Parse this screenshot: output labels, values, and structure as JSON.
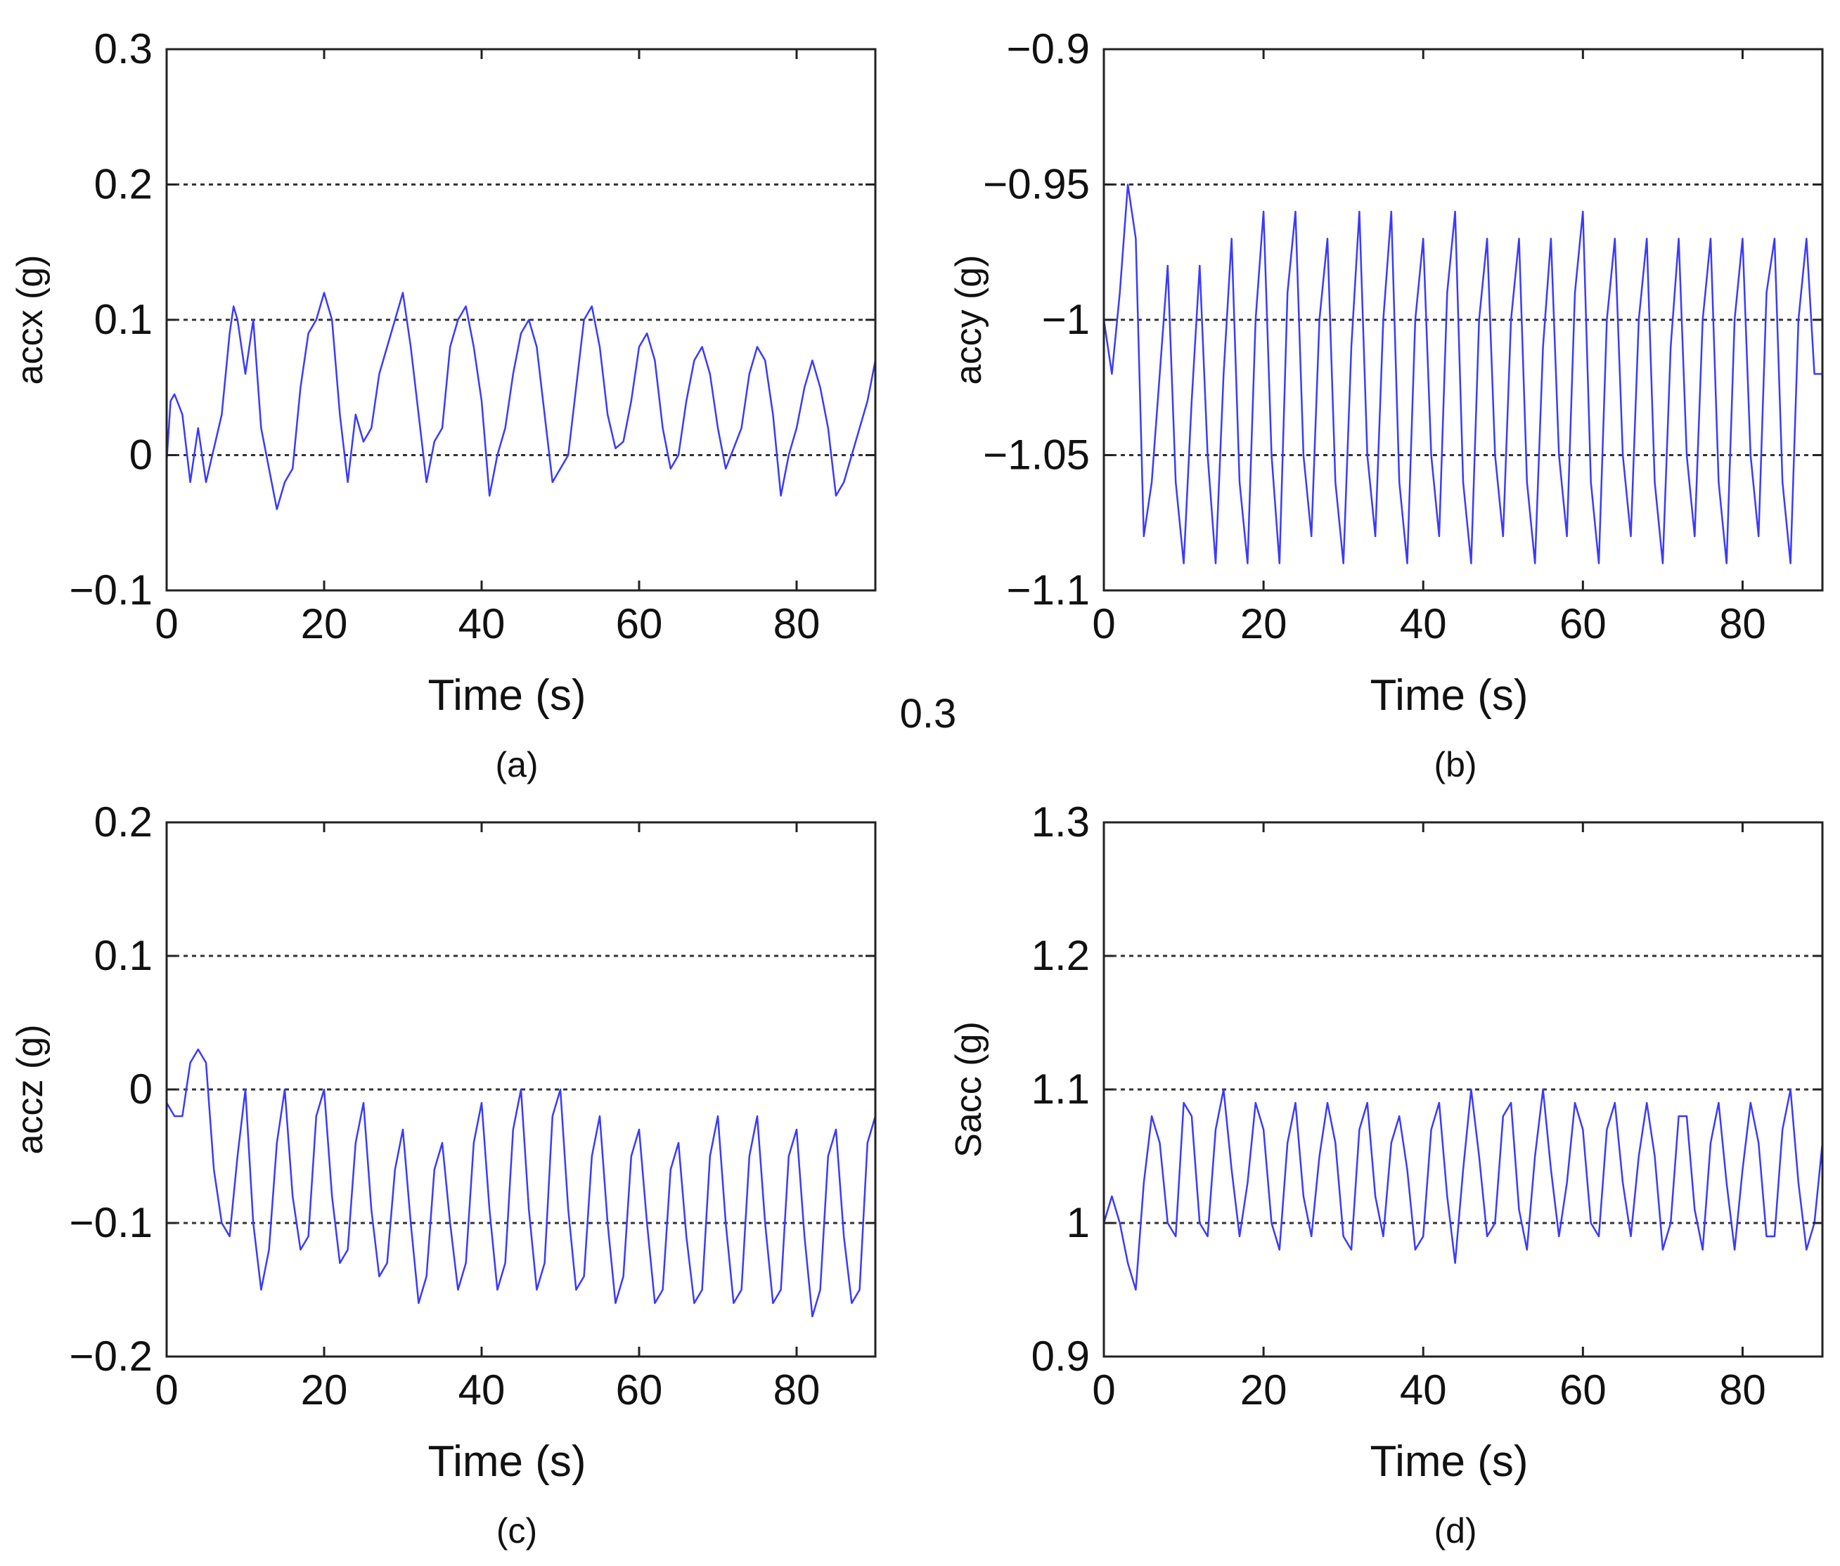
{
  "figure": {
    "stray_text": "0.3",
    "colors": {
      "series": "#3a3aff",
      "grid": "#333333",
      "axes": "#222222",
      "background": "#ffffff"
    }
  },
  "chart_data": [
    {
      "type": "line",
      "panel": "(a)",
      "xlabel": "Time (s)",
      "ylabel": "accx (g)",
      "xlim": [
        0,
        90
      ],
      "ylim": [
        -0.1,
        0.3
      ],
      "xticks": [
        0,
        20,
        40,
        60,
        80
      ],
      "xtick_labels": [
        "0",
        "20",
        "40",
        "60",
        "80"
      ],
      "yticks": [
        -0.1,
        0,
        0.1,
        0.2,
        0.3
      ],
      "ytick_labels": [
        "−0.1",
        "0",
        "0.1",
        "0.2",
        "0.3"
      ],
      "grid_y": [
        0,
        0.1,
        0.2
      ],
      "series": [
        {
          "name": "accx",
          "x": [
            0,
            0.5,
            1,
            2,
            3,
            4,
            5,
            6,
            7,
            8,
            8.5,
            9,
            10,
            11,
            12,
            13,
            14,
            15,
            16,
            17,
            18,
            19,
            20,
            21,
            22,
            23,
            24,
            25,
            26,
            27,
            28,
            29,
            30,
            31,
            32,
            33,
            34,
            35,
            36,
            37,
            38,
            39,
            40,
            41,
            42,
            43,
            44,
            45,
            46,
            47,
            48,
            49,
            50,
            51,
            52,
            53,
            54,
            55,
            56,
            57,
            58,
            59,
            60,
            61,
            62,
            63,
            64,
            65,
            66,
            67,
            68,
            69,
            70,
            71,
            72,
            73,
            74,
            75,
            76,
            77,
            78,
            79,
            80,
            81,
            82,
            83,
            84,
            85,
            86,
            87,
            88,
            89,
            90
          ],
          "y": [
            -0.005,
            0.04,
            0.045,
            0.03,
            -0.02,
            0.02,
            -0.02,
            0.005,
            0.03,
            0.09,
            0.11,
            0.1,
            0.06,
            0.1,
            0.02,
            -0.01,
            -0.04,
            -0.02,
            -0.01,
            0.05,
            0.09,
            0.1,
            0.12,
            0.1,
            0.03,
            -0.02,
            0.03,
            0.01,
            0.02,
            0.06,
            0.08,
            0.1,
            0.12,
            0.08,
            0.03,
            -0.02,
            0.01,
            0.02,
            0.08,
            0.1,
            0.11,
            0.08,
            0.04,
            -0.03,
            0.0,
            0.02,
            0.06,
            0.09,
            0.1,
            0.08,
            0.03,
            -0.02,
            -0.01,
            0.0,
            0.05,
            0.1,
            0.11,
            0.08,
            0.03,
            0.005,
            0.01,
            0.04,
            0.08,
            0.09,
            0.07,
            0.02,
            -0.01,
            0.0,
            0.04,
            0.07,
            0.08,
            0.06,
            0.02,
            -0.01,
            0.005,
            0.02,
            0.06,
            0.08,
            0.07,
            0.03,
            -0.03,
            0.0,
            0.02,
            0.05,
            0.07,
            0.05,
            0.02,
            -0.03,
            -0.02,
            0.0,
            0.02,
            0.04,
            0.07
          ]
        }
      ]
    },
    {
      "type": "line",
      "panel": "(b)",
      "xlabel": "Time (s)",
      "ylabel": "accy (g)",
      "xlim": [
        0,
        90
      ],
      "ylim": [
        -1.1,
        -0.9
      ],
      "xticks": [
        0,
        20,
        40,
        60,
        80
      ],
      "xtick_labels": [
        "0",
        "20",
        "40",
        "60",
        "80"
      ],
      "yticks": [
        -1.1,
        -1.05,
        -1.0,
        -0.95,
        -0.9
      ],
      "ytick_labels": [
        "−1.1",
        "−1.05",
        "−1",
        "−0.95",
        "−0.9"
      ],
      "grid_y": [
        -1.05,
        -1.0,
        -0.95
      ],
      "series": [
        {
          "name": "accy",
          "x": [
            0,
            1,
            2,
            3,
            4,
            5,
            6,
            7,
            8,
            9,
            10,
            11,
            12,
            13,
            14,
            15,
            16,
            17,
            18,
            19,
            20,
            21,
            22,
            23,
            24,
            25,
            26,
            27,
            28,
            29,
            30,
            31,
            32,
            33,
            34,
            35,
            36,
            37,
            38,
            39,
            40,
            41,
            42,
            43,
            44,
            45,
            46,
            47,
            48,
            49,
            50,
            51,
            52,
            53,
            54,
            55,
            56,
            57,
            58,
            59,
            60,
            61,
            62,
            63,
            64,
            65,
            66,
            67,
            68,
            69,
            70,
            71,
            72,
            73,
            74,
            75,
            76,
            77,
            78,
            79,
            80,
            81,
            82,
            83,
            84,
            85,
            86,
            87,
            88,
            89,
            90
          ],
          "y": [
            -1.0,
            -1.02,
            -0.99,
            -0.95,
            -0.97,
            -1.08,
            -1.06,
            -1.02,
            -0.98,
            -1.06,
            -1.09,
            -1.03,
            -0.98,
            -1.05,
            -1.09,
            -1.02,
            -0.97,
            -1.06,
            -1.09,
            -1.0,
            -0.96,
            -1.05,
            -1.09,
            -0.99,
            -0.96,
            -1.05,
            -1.08,
            -1.0,
            -0.97,
            -1.06,
            -1.09,
            -1.01,
            -0.96,
            -1.05,
            -1.08,
            -1.0,
            -0.96,
            -1.06,
            -1.09,
            -1.0,
            -0.97,
            -1.05,
            -1.08,
            -0.99,
            -0.96,
            -1.06,
            -1.09,
            -1.0,
            -0.97,
            -1.05,
            -1.08,
            -1.0,
            -0.97,
            -1.06,
            -1.09,
            -1.01,
            -0.97,
            -1.05,
            -1.08,
            -0.99,
            -0.96,
            -1.06,
            -1.09,
            -1.0,
            -0.97,
            -1.05,
            -1.08,
            -1.0,
            -0.97,
            -1.06,
            -1.09,
            -1.01,
            -0.97,
            -1.05,
            -1.08,
            -1.0,
            -0.97,
            -1.06,
            -1.09,
            -1.0,
            -0.97,
            -1.05,
            -1.08,
            -0.99,
            -0.97,
            -1.06,
            -1.09,
            -1.0,
            -0.97,
            -1.02,
            -1.02
          ]
        }
      ]
    },
    {
      "type": "line",
      "panel": "(c)",
      "xlabel": "Time (s)",
      "ylabel": "accz (g)",
      "xlim": [
        0,
        90
      ],
      "ylim": [
        -0.2,
        0.2
      ],
      "xticks": [
        0,
        20,
        40,
        60,
        80
      ],
      "xtick_labels": [
        "0",
        "20",
        "40",
        "60",
        "80"
      ],
      "yticks": [
        -0.2,
        -0.1,
        0,
        0.1,
        0.2
      ],
      "ytick_labels": [
        "−0.2",
        "−0.1",
        "0",
        "0.1",
        "0.2"
      ],
      "grid_y": [
        -0.1,
        0,
        0.1
      ],
      "series": [
        {
          "name": "accz",
          "x": [
            0,
            1,
            2,
            3,
            4,
            5,
            6,
            7,
            8,
            9,
            10,
            11,
            12,
            13,
            14,
            15,
            16,
            17,
            18,
            19,
            20,
            21,
            22,
            23,
            24,
            25,
            26,
            27,
            28,
            29,
            30,
            31,
            32,
            33,
            34,
            35,
            36,
            37,
            38,
            39,
            40,
            41,
            42,
            43,
            44,
            45,
            46,
            47,
            48,
            49,
            50,
            51,
            52,
            53,
            54,
            55,
            56,
            57,
            58,
            59,
            60,
            61,
            62,
            63,
            64,
            65,
            66,
            67,
            68,
            69,
            70,
            71,
            72,
            73,
            74,
            75,
            76,
            77,
            78,
            79,
            80,
            81,
            82,
            83,
            84,
            85,
            86,
            87,
            88,
            89,
            90
          ],
          "y": [
            -0.01,
            -0.02,
            -0.02,
            0.02,
            0.03,
            0.02,
            -0.06,
            -0.1,
            -0.11,
            -0.05,
            0.0,
            -0.1,
            -0.15,
            -0.12,
            -0.04,
            0.0,
            -0.08,
            -0.12,
            -0.11,
            -0.02,
            0.0,
            -0.08,
            -0.13,
            -0.12,
            -0.04,
            -0.01,
            -0.09,
            -0.14,
            -0.13,
            -0.06,
            -0.03,
            -0.1,
            -0.16,
            -0.14,
            -0.06,
            -0.04,
            -0.1,
            -0.15,
            -0.13,
            -0.04,
            -0.01,
            -0.09,
            -0.15,
            -0.13,
            -0.03,
            0.0,
            -0.09,
            -0.15,
            -0.13,
            -0.02,
            0.0,
            -0.09,
            -0.15,
            -0.14,
            -0.05,
            -0.02,
            -0.1,
            -0.16,
            -0.14,
            -0.05,
            -0.03,
            -0.1,
            -0.16,
            -0.15,
            -0.06,
            -0.04,
            -0.11,
            -0.16,
            -0.15,
            -0.05,
            -0.02,
            -0.1,
            -0.16,
            -0.15,
            -0.05,
            -0.02,
            -0.1,
            -0.16,
            -0.15,
            -0.05,
            -0.03,
            -0.11,
            -0.17,
            -0.15,
            -0.05,
            -0.03,
            -0.11,
            -0.16,
            -0.15,
            -0.04,
            -0.02
          ]
        }
      ]
    },
    {
      "type": "line",
      "panel": "(d)",
      "xlabel": "Time (s)",
      "ylabel": "Sacc (g)",
      "xlim": [
        0,
        90
      ],
      "ylim": [
        0.9,
        1.3
      ],
      "xticks": [
        0,
        20,
        40,
        60,
        80
      ],
      "xtick_labels": [
        "0",
        "20",
        "40",
        "60",
        "80"
      ],
      "yticks": [
        0.9,
        1.0,
        1.1,
        1.2,
        1.3
      ],
      "ytick_labels": [
        "0.9",
        "1",
        "1.1",
        "1.2",
        "1.3"
      ],
      "grid_y": [
        1.0,
        1.1,
        1.2
      ],
      "series": [
        {
          "name": "Sacc",
          "x": [
            0,
            1,
            2,
            3,
            4,
            5,
            6,
            7,
            8,
            9,
            10,
            11,
            12,
            13,
            14,
            15,
            16,
            17,
            18,
            19,
            20,
            21,
            22,
            23,
            24,
            25,
            26,
            27,
            28,
            29,
            30,
            31,
            32,
            33,
            34,
            35,
            36,
            37,
            38,
            39,
            40,
            41,
            42,
            43,
            44,
            45,
            46,
            47,
            48,
            49,
            50,
            51,
            52,
            53,
            54,
            55,
            56,
            57,
            58,
            59,
            60,
            61,
            62,
            63,
            64,
            65,
            66,
            67,
            68,
            69,
            70,
            71,
            72,
            73,
            74,
            75,
            76,
            77,
            78,
            79,
            80,
            81,
            82,
            83,
            84,
            85,
            86,
            87,
            88,
            89,
            90
          ],
          "y": [
            1.0,
            1.02,
            1.0,
            0.97,
            0.95,
            1.03,
            1.08,
            1.06,
            1.0,
            0.99,
            1.09,
            1.08,
            1.0,
            0.99,
            1.07,
            1.1,
            1.04,
            0.99,
            1.03,
            1.09,
            1.07,
            1.0,
            0.98,
            1.06,
            1.09,
            1.02,
            0.99,
            1.05,
            1.09,
            1.06,
            0.99,
            0.98,
            1.07,
            1.09,
            1.02,
            0.99,
            1.06,
            1.08,
            1.04,
            0.98,
            0.99,
            1.07,
            1.09,
            1.02,
            0.97,
            1.04,
            1.1,
            1.05,
            0.99,
            1.0,
            1.08,
            1.09,
            1.01,
            0.98,
            1.05,
            1.1,
            1.04,
            0.99,
            1.03,
            1.09,
            1.07,
            1.0,
            0.99,
            1.07,
            1.09,
            1.03,
            0.99,
            1.05,
            1.09,
            1.05,
            0.98,
            1.0,
            1.08,
            1.08,
            1.01,
            0.98,
            1.06,
            1.09,
            1.03,
            0.98,
            1.04,
            1.09,
            1.06,
            0.99,
            0.99,
            1.07,
            1.1,
            1.03,
            0.98,
            1.0,
            1.06
          ]
        }
      ]
    }
  ]
}
